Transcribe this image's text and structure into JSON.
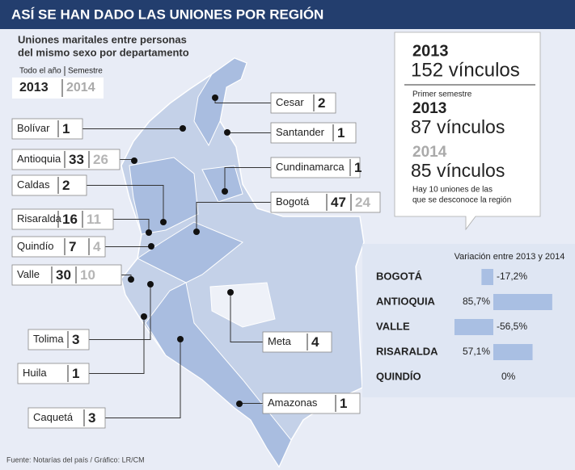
{
  "header": {
    "title": "ASÍ SE HAN DADO LAS UNIONES POR REGIÓN",
    "subtitle": [
      "Uniones maritales entre personas",
      "del mismo sexo por departamento"
    ]
  },
  "period_selector": {
    "full_year_label": "Todo el año",
    "semester_label": "Semestre",
    "year_active": "2013",
    "year_inactive": "2014"
  },
  "departments": [
    {
      "name": "Bolívar",
      "value_2013": 1
    },
    {
      "name": "Antioquia",
      "value_2013": 33,
      "value_2014": 26
    },
    {
      "name": "Caldas",
      "value_2013": 2
    },
    {
      "name": "Risaralda",
      "value_2013": 16,
      "value_2014": 11
    },
    {
      "name": "Quindío",
      "value_2013": 7,
      "value_2014": 4
    },
    {
      "name": "Valle",
      "value_2013": 30,
      "value_2014": 10
    },
    {
      "name": "Tolima",
      "value_2013": 3
    },
    {
      "name": "Huila",
      "value_2013": 1
    },
    {
      "name": "Caquetá",
      "value_2013": 3
    },
    {
      "name": "Cesar",
      "value_2013": 2
    },
    {
      "name": "Santander",
      "value_2013": 1
    },
    {
      "name": "Cundinamarca",
      "value_2013": 1
    },
    {
      "name": "Bogotá",
      "value_2013": 47,
      "value_2014": 24
    },
    {
      "name": "Meta",
      "value_2013": 4
    },
    {
      "name": "Amazonas",
      "value_2013": 1
    }
  ],
  "summary": {
    "year_full": "2013",
    "total_full": "152 vínculos",
    "semester_label": "Primer semestre",
    "year_a": "2013",
    "total_a": "87 vínculos",
    "year_b": "2014",
    "total_b": "85 vínculos",
    "note": [
      "Hay 10 uniones de las",
      "que se desconoce la región"
    ]
  },
  "chart_data": {
    "type": "bar",
    "orientation": "horizontal",
    "title": "Variación entre 2013 y 2014",
    "categories": [
      "BOGOTÁ",
      "ANTIOQUIA",
      "VALLE",
      "RISARALDA",
      "QUINDÍO"
    ],
    "values": [
      -17.2,
      85.7,
      -56.5,
      57.1,
      0
    ],
    "value_labels": [
      "-17,2%",
      "85,7%",
      "-56,5%",
      "57,1%",
      "0%"
    ],
    "color": "#a9bfe3"
  },
  "source": "Fuente: Notarías del país  / Gráfico: LR/CM"
}
